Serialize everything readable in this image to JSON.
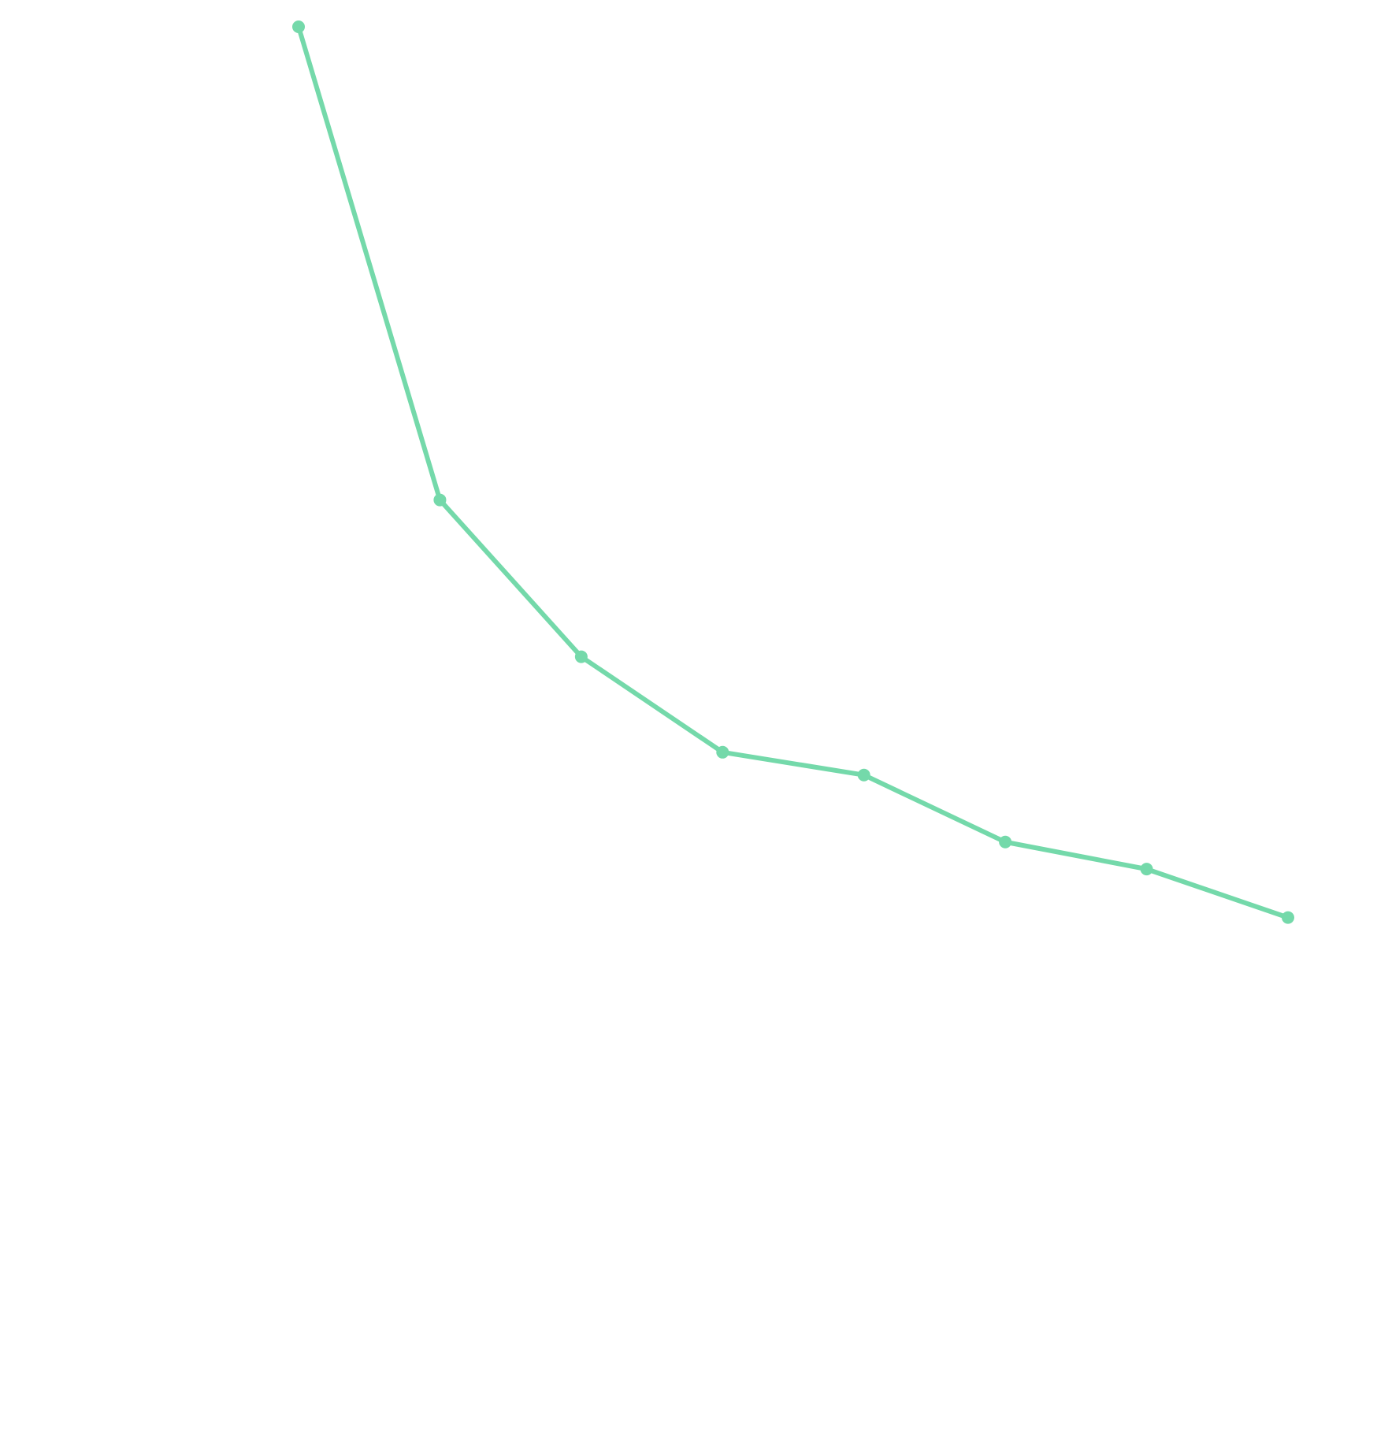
{
  "chart_data": {
    "type": "line",
    "categories": [
      null,
      null,
      null,
      null,
      null,
      null,
      null,
      null
    ],
    "series": [
      {
        "color": "#74d9aa",
        "values": [
          100,
          66.8,
          55.8,
          49.1,
          47.5,
          42.8,
          40.9,
          37.5
        ]
      }
    ],
    "ylim": [
      0,
      100
    ]
  }
}
